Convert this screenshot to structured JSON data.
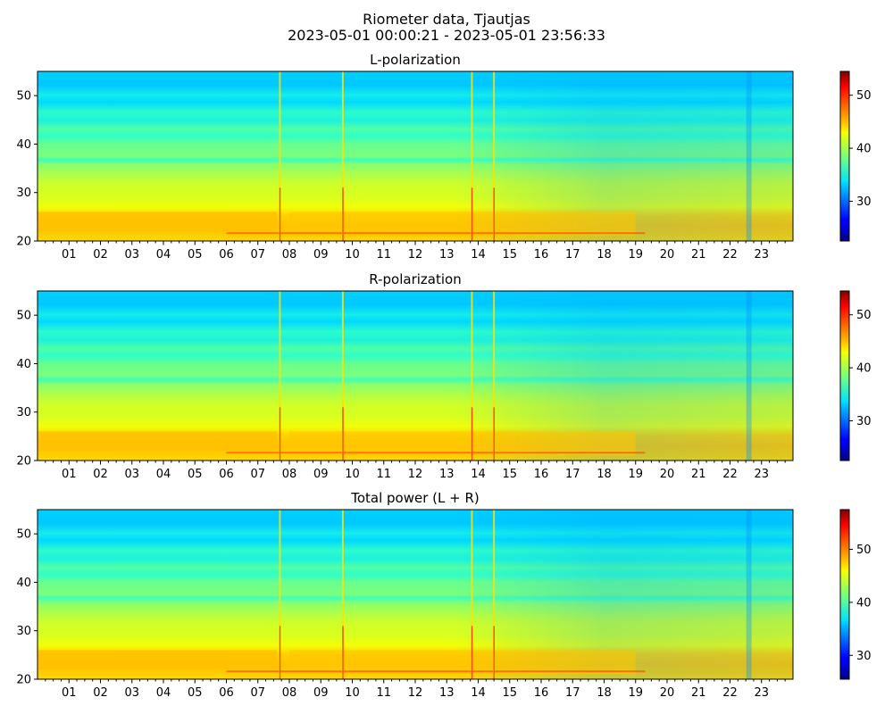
{
  "figure": {
    "title_line1": "Riometer data, Tjautjas",
    "title_line2": "2023-05-01 00:00:21 - 2023-05-01 23:56:33"
  },
  "chart_data": [
    {
      "type": "heatmap",
      "title": "L-polarization",
      "xlabel": "",
      "ylabel": "",
      "x_unit": "hour of day",
      "xlim": [
        0,
        24
      ],
      "ylim": [
        20,
        55
      ],
      "xticks": [
        "01",
        "02",
        "03",
        "04",
        "05",
        "06",
        "07",
        "08",
        "09",
        "10",
        "11",
        "12",
        "13",
        "14",
        "15",
        "16",
        "17",
        "18",
        "19",
        "20",
        "21",
        "22",
        "23"
      ],
      "yticks": [
        "20",
        "30",
        "40",
        "50"
      ],
      "colormap": "jet",
      "colorbar": {
        "range": [
          22.5,
          54.5
        ],
        "ticks": [
          "30",
          "40",
          "50"
        ]
      },
      "features": [
        {
          "x_hour": 7.7,
          "kind": "vertical spike"
        },
        {
          "x_hour": 9.7,
          "kind": "vertical spike"
        },
        {
          "x_hour": 13.8,
          "kind": "vertical spike"
        },
        {
          "x_hour": 14.5,
          "kind": "vertical spike"
        },
        {
          "x_hour": 22.6,
          "kind": "dip"
        }
      ]
    },
    {
      "type": "heatmap",
      "title": "R-polarization",
      "xlabel": "",
      "ylabel": "",
      "x_unit": "hour of day",
      "xlim": [
        0,
        24
      ],
      "ylim": [
        20,
        55
      ],
      "xticks": [
        "01",
        "02",
        "03",
        "04",
        "05",
        "06",
        "07",
        "08",
        "09",
        "10",
        "11",
        "12",
        "13",
        "14",
        "15",
        "16",
        "17",
        "18",
        "19",
        "20",
        "21",
        "22",
        "23"
      ],
      "yticks": [
        "20",
        "30",
        "40",
        "50"
      ],
      "colormap": "jet",
      "colorbar": {
        "range": [
          22.5,
          54.5
        ],
        "ticks": [
          "30",
          "40",
          "50"
        ]
      },
      "features": [
        {
          "x_hour": 7.7,
          "kind": "vertical spike"
        },
        {
          "x_hour": 9.7,
          "kind": "vertical spike"
        },
        {
          "x_hour": 13.8,
          "kind": "vertical spike"
        },
        {
          "x_hour": 14.5,
          "kind": "vertical spike"
        },
        {
          "x_hour": 22.6,
          "kind": "dip"
        }
      ]
    },
    {
      "type": "heatmap",
      "title": "Total power (L + R)",
      "xlabel": "",
      "ylabel": "",
      "x_unit": "hour of day",
      "xlim": [
        0,
        24
      ],
      "ylim": [
        20,
        55
      ],
      "xticks": [
        "01",
        "02",
        "03",
        "04",
        "05",
        "06",
        "07",
        "08",
        "09",
        "10",
        "11",
        "12",
        "13",
        "14",
        "15",
        "16",
        "17",
        "18",
        "19",
        "20",
        "21",
        "22",
        "23"
      ],
      "yticks": [
        "20",
        "30",
        "40",
        "50"
      ],
      "colormap": "jet",
      "colorbar": {
        "range": [
          25.5,
          57.5
        ],
        "ticks": [
          "30",
          "40",
          "50"
        ]
      },
      "features": [
        {
          "x_hour": 7.7,
          "kind": "vertical spike"
        },
        {
          "x_hour": 9.7,
          "kind": "vertical spike"
        },
        {
          "x_hour": 13.8,
          "kind": "vertical spike"
        },
        {
          "x_hour": 14.5,
          "kind": "vertical spike"
        },
        {
          "x_hour": 22.6,
          "kind": "dip"
        }
      ]
    }
  ]
}
